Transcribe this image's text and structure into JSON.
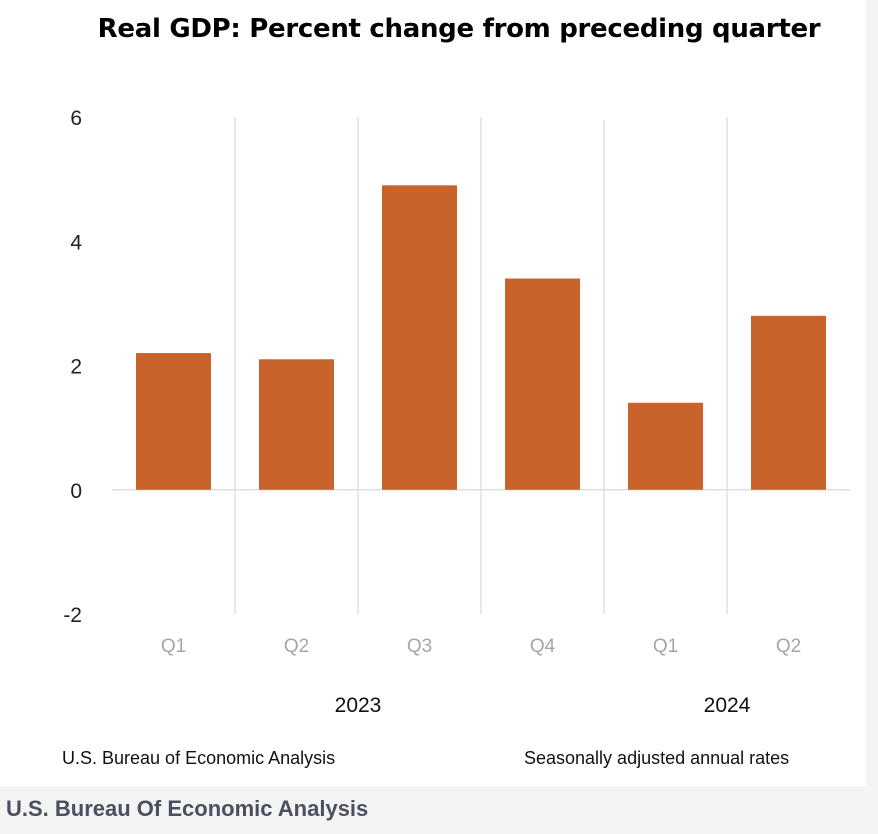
{
  "chart_data": {
    "type": "bar",
    "title": "Real GDP:  Percent change from preceding quarter",
    "categories": [
      "Q1",
      "Q2",
      "Q3",
      "Q4",
      "Q1",
      "Q2"
    ],
    "groups": [
      {
        "label": "2023",
        "categories": [
          "Q1",
          "Q2",
          "Q3",
          "Q4"
        ]
      },
      {
        "label": "2024",
        "categories": [
          "Q1",
          "Q2"
        ]
      }
    ],
    "values": [
      2.2,
      2.1,
      4.9,
      3.4,
      1.4,
      2.8
    ],
    "ylim": [
      -2,
      6
    ],
    "yticks": [
      "6",
      "4",
      "2",
      "0",
      "-2"
    ],
    "bar_color": "#c8632c",
    "grid": "vertical"
  },
  "footer": {
    "source": "U.S. Bureau of Economic Analysis",
    "note": "Seasonally adjusted annual rates"
  },
  "caption": "U.S. Bureau Of Economic Analysis"
}
